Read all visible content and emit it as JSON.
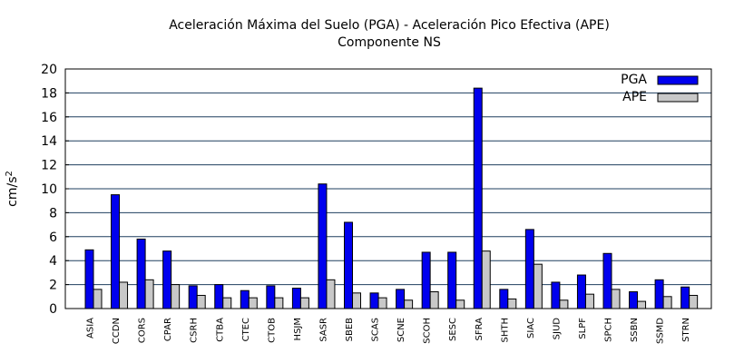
{
  "chart_data": {
    "type": "bar",
    "title": "Aceleración Máxima del Suelo (PGA) -  Aceleración Pico Efectiva (APE)",
    "subtitle": "Componente NS",
    "ylabel": "cm/s",
    "ylabel_sup": "2",
    "xlabel": "",
    "ylim": [
      0,
      20
    ],
    "yticks": [
      0,
      2,
      4,
      6,
      8,
      10,
      12,
      14,
      16,
      18,
      20
    ],
    "grid": true,
    "legend_position": "top-right",
    "categories": [
      "ASIA",
      "CCDN",
      "CORS",
      "CPAR",
      "CSRH",
      "CTBA",
      "CTEC",
      "CTOB",
      "HSJM",
      "SASR",
      "SBEB",
      "SCAS",
      "SCNE",
      "SCOH",
      "SESC",
      "SFRA",
      "SHTH",
      "SIAC",
      "SJUD",
      "SLPF",
      "SPCH",
      "SSBN",
      "SSMD",
      "STRN"
    ],
    "series": [
      {
        "name": "PGA",
        "color": "#0000ee",
        "values": [
          4.9,
          9.5,
          5.8,
          4.8,
          1.9,
          2.0,
          1.5,
          1.9,
          1.7,
          10.4,
          7.2,
          1.3,
          1.6,
          4.7,
          4.7,
          18.4,
          1.6,
          6.6,
          2.2,
          2.8,
          4.6,
          1.4,
          2.4,
          1.8
        ]
      },
      {
        "name": "APE",
        "color": "#c8c8c8",
        "values": [
          1.6,
          2.2,
          2.4,
          2.0,
          1.1,
          0.9,
          0.9,
          0.9,
          0.9,
          2.4,
          1.3,
          0.9,
          0.7,
          1.4,
          0.7,
          4.8,
          0.8,
          3.7,
          0.7,
          1.2,
          1.6,
          0.6,
          1.0,
          1.1
        ]
      }
    ]
  }
}
